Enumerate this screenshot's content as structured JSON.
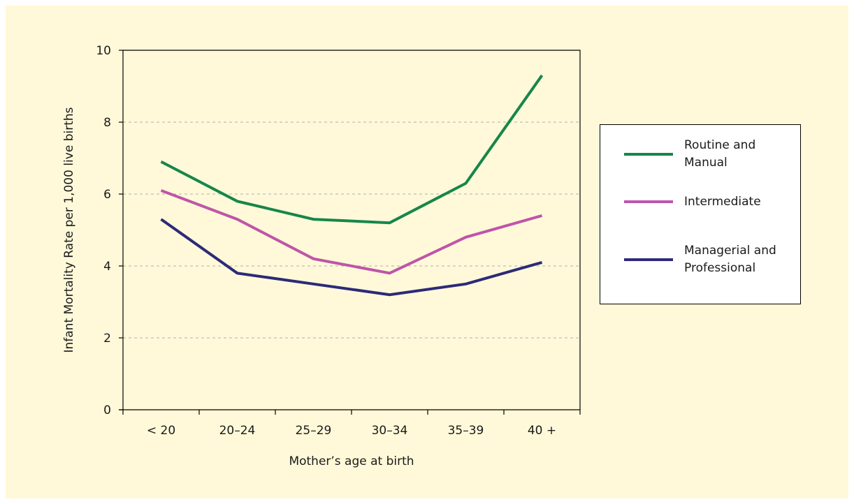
{
  "chart_data": {
    "type": "line",
    "title": "",
    "xlabel": "Mother’s age at birth",
    "ylabel": "Infant Mortality Rate per 1,000 live births",
    "categories": [
      "< 20",
      "20–24",
      "25–29",
      "30–34",
      "35–39",
      "40 +"
    ],
    "ylim": [
      0,
      10
    ],
    "yticks": [
      "0",
      "2",
      "4",
      "6",
      "8",
      "10"
    ],
    "grid": "horizontal dashed",
    "legend_position": "right",
    "series": [
      {
        "name": "Routine and Manual",
        "color": "#17864a",
        "values": [
          6.9,
          5.8,
          5.3,
          5.2,
          6.3,
          9.3
        ]
      },
      {
        "name": "Intermediate",
        "color": "#bf55a8",
        "values": [
          6.1,
          5.3,
          4.2,
          3.8,
          4.8,
          5.4
        ]
      },
      {
        "name": "Managerial and Professional",
        "color": "#2c2a78",
        "values": [
          5.3,
          3.8,
          3.5,
          3.2,
          3.5,
          4.1
        ]
      }
    ]
  }
}
